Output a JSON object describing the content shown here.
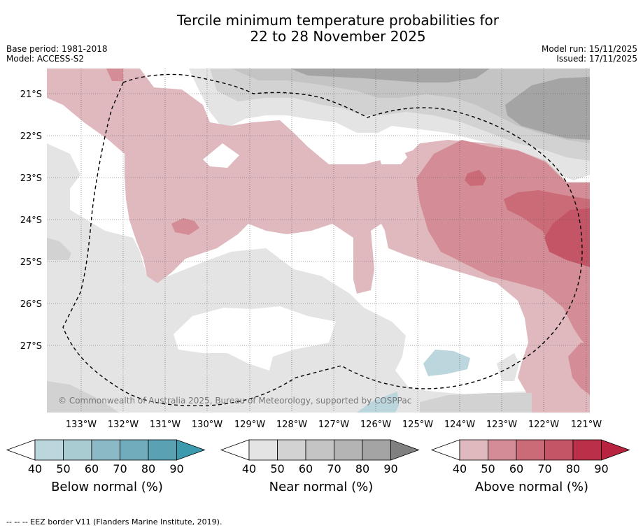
{
  "title": {
    "line1": "Tercile minimum temperature probabilities for",
    "line2": "22 to 28 November 2025"
  },
  "meta": {
    "base_period": "Base period: 1981-2018",
    "model": "Model: ACCESS-S2",
    "model_run": "Model run: 15/11/2025",
    "issued": "Issued: 17/11/2025"
  },
  "map": {
    "lat_labels": [
      "21°S",
      "22°S",
      "23°S",
      "24°S",
      "25°S",
      "26°S",
      "27°S"
    ],
    "lon_labels": [
      "133°W",
      "132°W",
      "131°W",
      "130°W",
      "129°W",
      "128°W",
      "127°W",
      "126°W",
      "125°W",
      "124°W",
      "123°W",
      "122°W",
      "121°W"
    ],
    "copyright": "© Commonwealth of Australia 2025, Bureau of Meteorology, supported by COSPPac",
    "colors": {
      "below_40": "#bcd6dd",
      "near_40": "#e4e4e4",
      "near_50": "#d2d2d2",
      "near_60": "#c4c4c4",
      "near_80": "#a4a4a4",
      "above_40": "#e0b9bf",
      "above_50": "#d48d96",
      "above_60": "#cb6b77",
      "above_70": "#c45566"
    }
  },
  "colorbars": [
    {
      "title": "Below normal (%)",
      "ticks": [
        "40",
        "50",
        "60",
        "70",
        "80",
        "90"
      ],
      "colors": [
        "#bcd6dd",
        "#a9cbd2",
        "#8cb9c6",
        "#71acbc",
        "#5aa1b3",
        "#3b9aae"
      ]
    },
    {
      "title": "Near normal (%)",
      "ticks": [
        "40",
        "50",
        "60",
        "70",
        "80",
        "90"
      ],
      "colors": [
        "#e4e4e4",
        "#d2d2d2",
        "#c4c4c4",
        "#b4b4b4",
        "#a4a4a4",
        "#808080"
      ]
    },
    {
      "title": "Above normal (%)",
      "ticks": [
        "40",
        "50",
        "60",
        "70",
        "80",
        "90"
      ],
      "colors": [
        "#e0b9bf",
        "#d48d96",
        "#cb6b77",
        "#c45566",
        "#bb3048",
        "#b8233f"
      ]
    }
  ],
  "footnote": "--  --  -- EEZ border V11 (Flanders Marine Institute, 2019)."
}
